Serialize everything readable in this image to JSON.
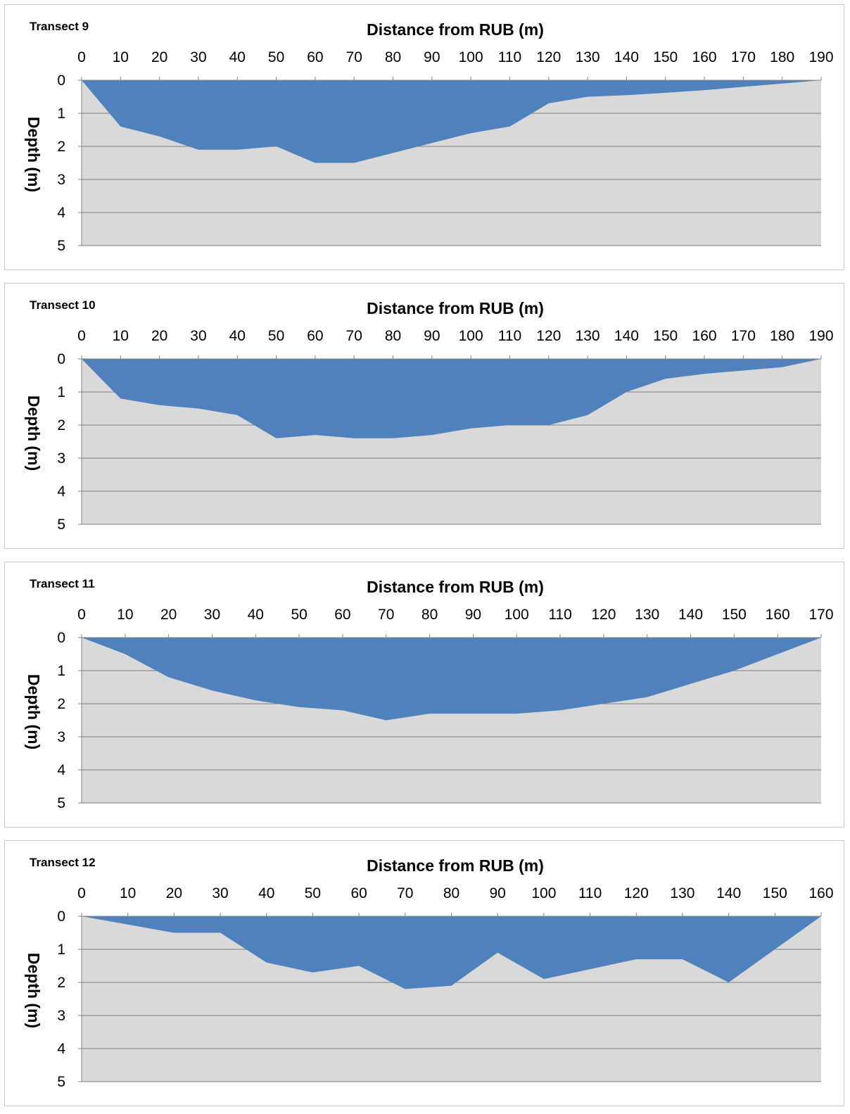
{
  "chart_data": [
    {
      "type": "area",
      "title": "Transect 9",
      "xlabel": "Distance from RUB (m)",
      "ylabel": "Depth (m)",
      "x_axis_position": "top",
      "y_inverted": true,
      "grid": true,
      "xlim": [
        0,
        190
      ],
      "ylim": [
        0,
        5
      ],
      "x_ticks": [
        0,
        10,
        20,
        30,
        40,
        50,
        60,
        70,
        80,
        90,
        100,
        110,
        120,
        130,
        140,
        150,
        160,
        170,
        180,
        190
      ],
      "y_ticks": [
        0,
        1,
        2,
        3,
        4,
        5
      ],
      "x": [
        0,
        10,
        20,
        30,
        40,
        50,
        60,
        70,
        80,
        90,
        100,
        110,
        120,
        130,
        140,
        150,
        160,
        170,
        180,
        190
      ],
      "values": [
        0,
        1.4,
        1.7,
        2.1,
        2.1,
        2.0,
        2.5,
        2.5,
        2.2,
        1.9,
        1.6,
        1.4,
        0.7,
        0.5,
        0.45,
        0.38,
        0.3,
        0.2,
        0.1,
        0
      ],
      "colors": {
        "fill": "#4f81bd",
        "background": "#d9d9d9",
        "grid": "#808080"
      }
    },
    {
      "type": "area",
      "title": "Transect 10",
      "xlabel": "Distance from RUB (m)",
      "ylabel": "Depth (m)",
      "x_axis_position": "top",
      "y_inverted": true,
      "grid": true,
      "xlim": [
        0,
        190
      ],
      "ylim": [
        0,
        5
      ],
      "x_ticks": [
        0,
        10,
        20,
        30,
        40,
        50,
        60,
        70,
        80,
        90,
        100,
        110,
        120,
        130,
        140,
        150,
        160,
        170,
        180,
        190
      ],
      "y_ticks": [
        0,
        1,
        2,
        3,
        4,
        5
      ],
      "x": [
        0,
        10,
        20,
        30,
        40,
        50,
        60,
        70,
        80,
        90,
        100,
        110,
        120,
        130,
        140,
        150,
        160,
        170,
        180,
        190
      ],
      "values": [
        0,
        1.2,
        1.4,
        1.5,
        1.7,
        2.4,
        2.3,
        2.4,
        2.4,
        2.3,
        2.1,
        2.0,
        2.0,
        1.7,
        1.0,
        0.6,
        0.45,
        0.35,
        0.25,
        0
      ],
      "colors": {
        "fill": "#4f81bd",
        "background": "#d9d9d9",
        "grid": "#808080"
      }
    },
    {
      "type": "area",
      "title": "Transect 11",
      "xlabel": "Distance from RUB (m)",
      "ylabel": "Depth (m)",
      "x_axis_position": "top",
      "y_inverted": true,
      "grid": true,
      "xlim": [
        0,
        170
      ],
      "ylim": [
        0,
        5
      ],
      "x_ticks": [
        0,
        10,
        20,
        30,
        40,
        50,
        60,
        70,
        80,
        90,
        100,
        110,
        120,
        130,
        140,
        150,
        160,
        170
      ],
      "y_ticks": [
        0,
        1,
        2,
        3,
        4,
        5
      ],
      "x": [
        0,
        10,
        20,
        30,
        40,
        50,
        60,
        70,
        80,
        90,
        100,
        110,
        120,
        130,
        140,
        150,
        160,
        170
      ],
      "values": [
        0,
        0.5,
        1.2,
        1.6,
        1.9,
        2.1,
        2.2,
        2.5,
        2.3,
        2.3,
        2.3,
        2.2,
        2.0,
        1.8,
        1.4,
        1.0,
        0.5,
        0
      ],
      "colors": {
        "fill": "#4f81bd",
        "background": "#d9d9d9",
        "grid": "#808080"
      }
    },
    {
      "type": "area",
      "title": "Transect 12",
      "xlabel": "Distance from RUB (m)",
      "ylabel": "Depth (m)",
      "x_axis_position": "top",
      "y_inverted": true,
      "grid": true,
      "xlim": [
        0,
        160
      ],
      "ylim": [
        0,
        5
      ],
      "x_ticks": [
        0,
        10,
        20,
        30,
        40,
        50,
        60,
        70,
        80,
        90,
        100,
        110,
        120,
        130,
        140,
        150,
        160
      ],
      "y_ticks": [
        0,
        1,
        2,
        3,
        4,
        5
      ],
      "x": [
        0,
        10,
        20,
        30,
        40,
        50,
        60,
        70,
        80,
        90,
        100,
        110,
        120,
        130,
        140,
        150,
        160
      ],
      "values": [
        0,
        0.25,
        0.5,
        0.5,
        1.4,
        1.7,
        1.5,
        2.2,
        2.1,
        1.1,
        1.9,
        1.6,
        1.3,
        1.3,
        2.0,
        1.0,
        0
      ],
      "colors": {
        "fill": "#4f81bd",
        "background": "#d9d9d9",
        "grid": "#808080"
      }
    }
  ]
}
